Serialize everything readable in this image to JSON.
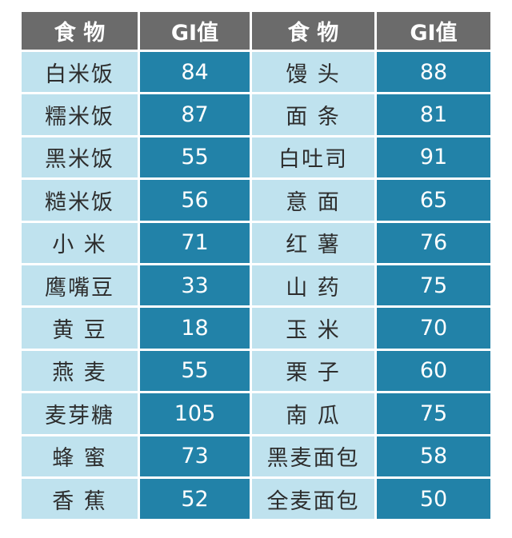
{
  "headers": {
    "food_left": "食 物",
    "gi_left": "GI值",
    "food_right": "食 物",
    "gi_right": "GI值"
  },
  "rows": [
    {
      "left_food": "白米饭",
      "left_gi": "84",
      "right_food": "馒 头",
      "right_gi": "88"
    },
    {
      "left_food": "糯米饭",
      "left_gi": "87",
      "right_food": "面 条",
      "right_gi": "81"
    },
    {
      "left_food": "黑米饭",
      "left_gi": "55",
      "right_food": "白吐司",
      "right_gi": "91"
    },
    {
      "left_food": "糙米饭",
      "left_gi": "56",
      "right_food": "意 面",
      "right_gi": "65"
    },
    {
      "left_food": "小 米",
      "left_gi": "71",
      "right_food": "红 薯",
      "right_gi": "76"
    },
    {
      "left_food": "鹰嘴豆",
      "left_gi": "33",
      "right_food": "山 药",
      "right_gi": "75"
    },
    {
      "left_food": "黄 豆",
      "left_gi": "18",
      "right_food": "玉 米",
      "right_gi": "70"
    },
    {
      "left_food": "燕 麦",
      "left_gi": "55",
      "right_food": "栗 子",
      "right_gi": "60"
    },
    {
      "left_food": "麦芽糖",
      "left_gi": "105",
      "right_food": "南 瓜",
      "right_gi": "75"
    },
    {
      "left_food": "蜂 蜜",
      "left_gi": "73",
      "right_food": "黑麦面包",
      "right_gi": "58"
    },
    {
      "left_food": "香 蕉",
      "left_gi": "52",
      "right_food": "全麦面包",
      "right_gi": "50"
    }
  ],
  "colors": {
    "header_bg": "#6b6b6b",
    "food_cell_bg": "#bfe2ee",
    "gi_cell_bg": "#2282a8"
  }
}
